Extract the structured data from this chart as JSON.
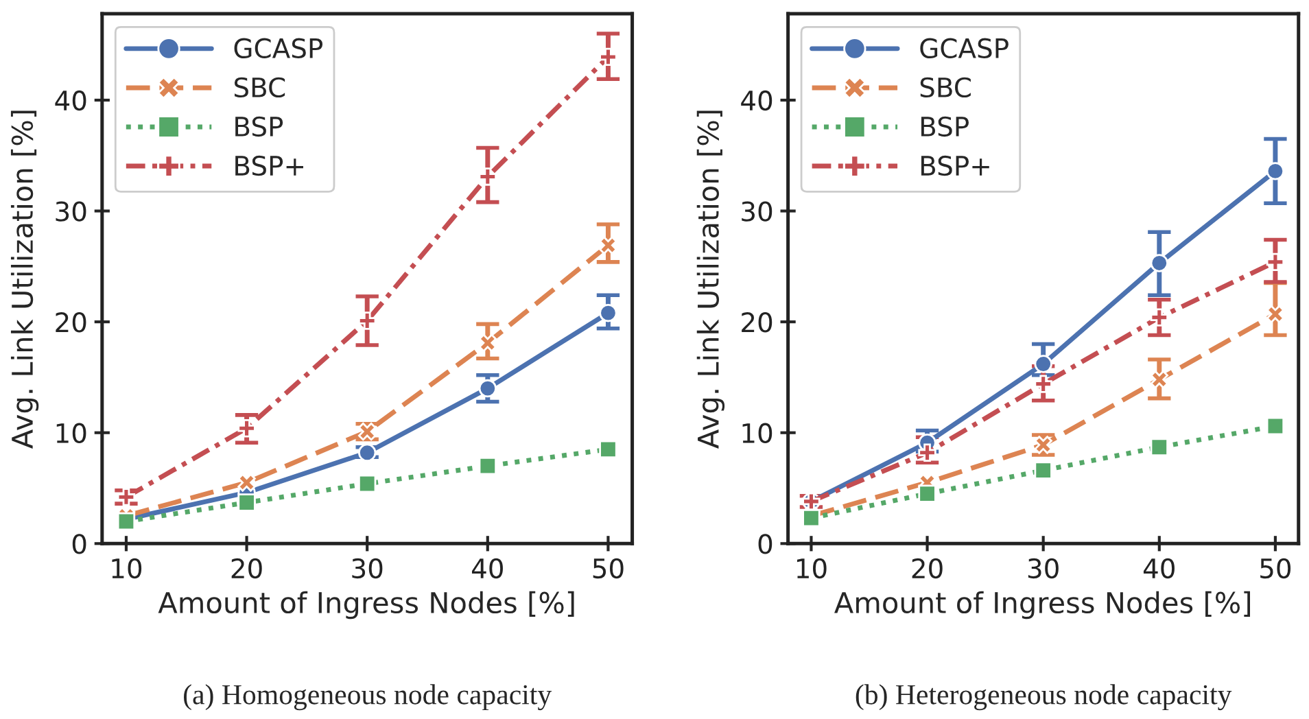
{
  "chart_data": [
    {
      "type": "line",
      "xlabel": "Amount of Ingress Nodes [%]",
      "ylabel": "Avg. Link Utilization [%]",
      "annotations": [
        "(a) Homogeneous node capacity"
      ],
      "x": [
        10,
        20,
        30,
        40,
        50
      ],
      "xlim": [
        8,
        52
      ],
      "xticks": [
        10,
        20,
        30,
        40,
        50
      ],
      "ylim": [
        0,
        47.8
      ],
      "yticks": [
        0,
        10,
        20,
        30,
        40
      ],
      "grid": false,
      "legend": "top left",
      "series": [
        {
          "name": "GCASP",
          "color": "#4c72b0",
          "marker": "circle",
          "line_style": "solid",
          "values": [
            2.2,
            4.6,
            8.2,
            14.0,
            20.8
          ],
          "errors": [
            null,
            null,
            [
              7.8,
              8.7
            ],
            [
              12.8,
              15.2
            ],
            [
              19.4,
              22.4
            ]
          ]
        },
        {
          "name": "SBC",
          "color": "#dd8452",
          "marker": "cross",
          "line_style": "dashed",
          "values": [
            2.5,
            5.5,
            10.1,
            18.1,
            26.9
          ],
          "errors": [
            null,
            null,
            [
              9.4,
              10.8
            ],
            [
              16.7,
              19.8
            ],
            [
              25.4,
              28.8
            ]
          ]
        },
        {
          "name": "BSP",
          "color": "#55a868",
          "marker": "square",
          "line_style": "dotted",
          "values": [
            2.0,
            3.7,
            5.4,
            7.0,
            8.5
          ],
          "errors": [
            null,
            null,
            null,
            null,
            null
          ]
        },
        {
          "name": "BSP+",
          "color": "#c44e52",
          "marker": "plus",
          "line_style": "dashdot",
          "values": [
            4.2,
            10.4,
            20.1,
            33.1,
            43.9
          ],
          "errors": [
            [
              3.6,
              4.8
            ],
            [
              9.1,
              11.6
            ],
            [
              17.9,
              22.3
            ],
            [
              30.8,
              35.7
            ],
            [
              41.9,
              46.0
            ]
          ]
        }
      ]
    },
    {
      "type": "line",
      "xlabel": "Amount of Ingress Nodes [%]",
      "ylabel": "Avg. Link Utilization [%]",
      "annotations": [
        "(b) Heterogeneous node capacity"
      ],
      "x": [
        10,
        20,
        30,
        40,
        50
      ],
      "xlim": [
        8,
        52
      ],
      "xticks": [
        10,
        20,
        30,
        40,
        50
      ],
      "ylim": [
        0,
        47.8
      ],
      "yticks": [
        0,
        10,
        20,
        30,
        40
      ],
      "grid": false,
      "legend": "top left",
      "series": [
        {
          "name": "GCASP",
          "color": "#4c72b0",
          "marker": "circle",
          "line_style": "solid",
          "values": [
            3.8,
            9.1,
            16.2,
            25.3,
            33.6
          ],
          "errors": [
            null,
            [
              8.3,
              10.2
            ],
            [
              15.2,
              18.0
            ],
            [
              22.4,
              28.1
            ],
            [
              30.7,
              36.5
            ]
          ]
        },
        {
          "name": "SBC",
          "color": "#dd8452",
          "marker": "cross",
          "line_style": "dashed",
          "values": [
            2.5,
            5.5,
            8.9,
            14.8,
            20.7
          ],
          "errors": [
            null,
            null,
            [
              8.0,
              9.8
            ],
            [
              13.1,
              16.6
            ],
            [
              18.8,
              23.5
            ]
          ]
        },
        {
          "name": "BSP",
          "color": "#55a868",
          "marker": "square",
          "line_style": "dotted",
          "values": [
            2.3,
            4.5,
            6.6,
            8.7,
            10.6
          ],
          "errors": [
            null,
            null,
            null,
            null,
            null
          ]
        },
        {
          "name": "BSP+",
          "color": "#c44e52",
          "marker": "plus",
          "line_style": "dashdot",
          "values": [
            3.8,
            8.2,
            14.4,
            20.4,
            25.4
          ],
          "errors": [
            [
              3.3,
              4.3
            ],
            [
              7.3,
              9.6
            ],
            [
              12.9,
              16.0
            ],
            [
              18.8,
              22.0
            ],
            [
              23.6,
              27.4
            ]
          ]
        }
      ]
    }
  ]
}
